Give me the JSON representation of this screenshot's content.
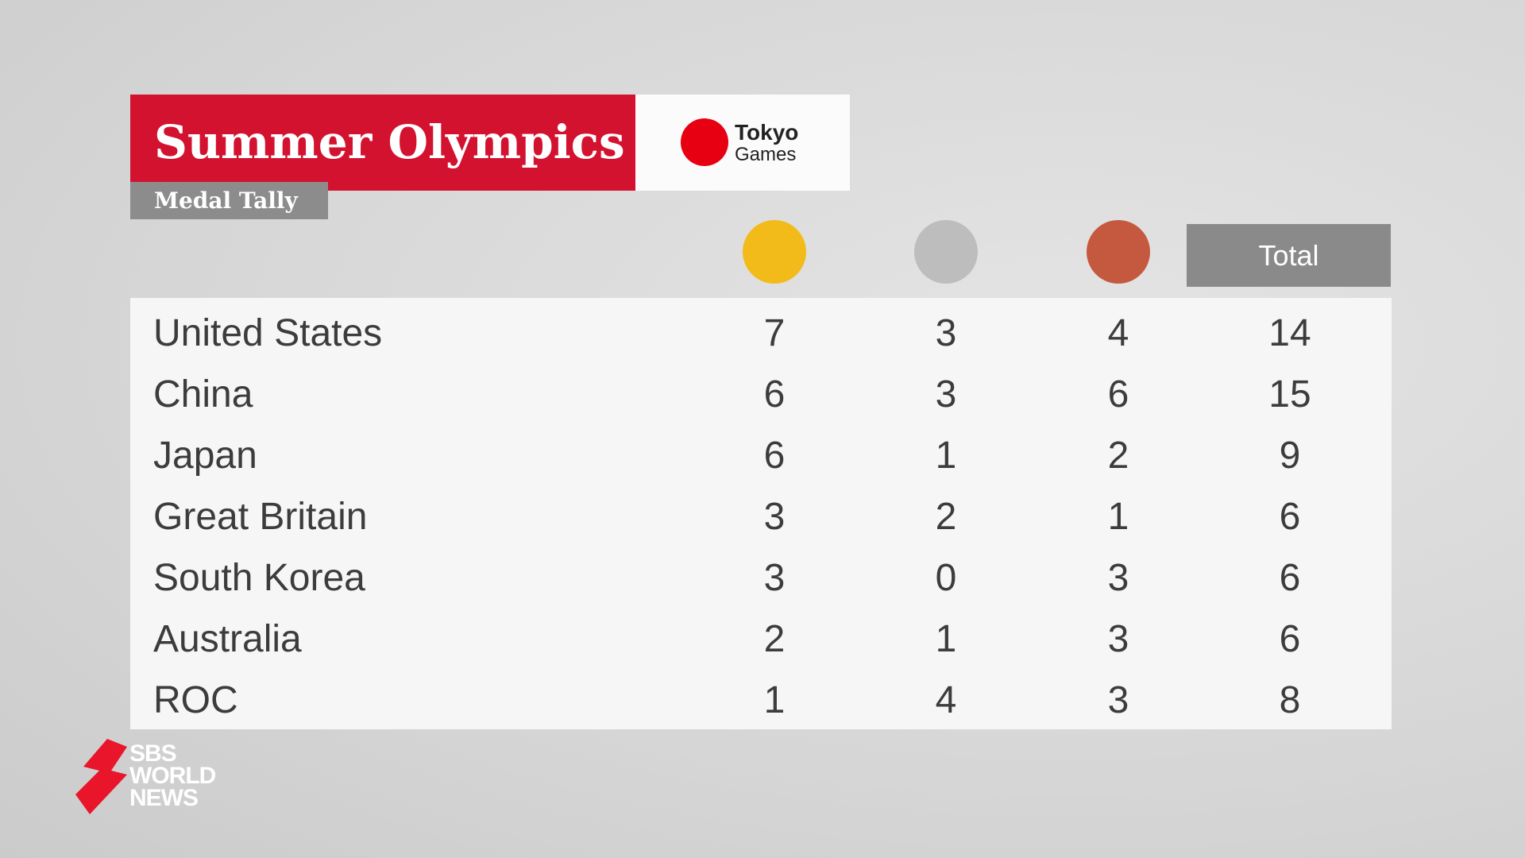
{
  "header": {
    "title": "Summer Olympics",
    "subtitle": "Medal Tally"
  },
  "logo": {
    "line1": "Tokyo",
    "line2": "Games"
  },
  "table": {
    "total_header": "Total",
    "medal_colors": [
      "#f2bb1a",
      "#bdbdbd",
      "#c5593f"
    ],
    "rows": [
      [
        "United States",
        7,
        3,
        4,
        14
      ],
      [
        "China",
        6,
        3,
        6,
        15
      ],
      [
        "Japan",
        6,
        1,
        2,
        9
      ],
      [
        "Great Britain",
        3,
        2,
        1,
        6
      ],
      [
        "South Korea",
        3,
        0,
        3,
        6
      ],
      [
        "Australia",
        2,
        1,
        3,
        6
      ],
      [
        "ROC",
        1,
        4,
        3,
        8
      ]
    ]
  },
  "branding": {
    "line1": "SBS",
    "line2": "WORLD",
    "line3": "NEWS"
  }
}
